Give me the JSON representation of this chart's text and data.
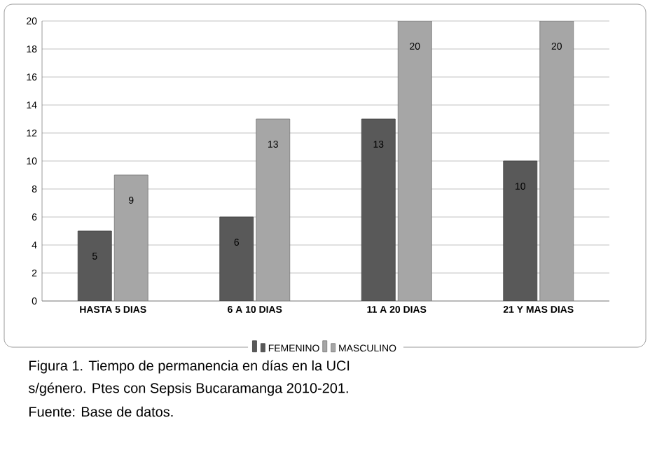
{
  "chart_data": {
    "type": "bar",
    "categories": [
      "HASTA 5 DIAS",
      "6 A 10 DIAS",
      "11 A 20 DIAS",
      "21 Y MAS DIAS"
    ],
    "series": [
      {
        "name": "FEMENINO",
        "color": "#595959",
        "values": [
          5,
          6,
          13,
          10
        ]
      },
      {
        "name": "MASCULINO",
        "color": "#a6a6a6",
        "values": [
          9,
          13,
          20,
          20
        ]
      }
    ],
    "ylim": [
      0,
      20
    ],
    "yticks": [
      0,
      2,
      4,
      6,
      8,
      10,
      12,
      14,
      16,
      18,
      20
    ],
    "grid": "y",
    "legend": "bottom",
    "data_labels": true,
    "annotations": [
      "Figura 1. Tiempo de permanencia en días en la UCI",
      "s/género. Ptes con Sepsis Bucaramanga 2010-201.",
      "Fuente: Base de datos."
    ]
  }
}
